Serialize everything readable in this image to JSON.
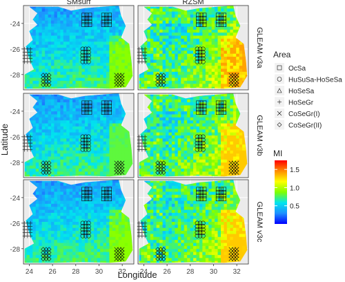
{
  "chart_data": {
    "type": "heatmap",
    "title": "",
    "xlabel": "Longitude",
    "ylabel": "Latitude",
    "columns": [
      "SMsurf",
      "RZSM"
    ],
    "rows": [
      "GLEAM v3a",
      "GLEAM v3b",
      "GLEAM v3c"
    ],
    "xlim": [
      23.5,
      33
    ],
    "ylim": [
      -29.2,
      -22.6
    ],
    "x_ticks": [
      24,
      26,
      28,
      30,
      32
    ],
    "x_tick_labels": [
      "24",
      "26",
      "28",
      "30",
      "32"
    ],
    "y_ticks": [
      -24,
      -26,
      -28
    ],
    "y_tick_labels": [
      "-24",
      "-26",
      "-28"
    ],
    "areas_legend": {
      "title": "Area",
      "items": [
        {
          "label": "OcSa",
          "symbol": "square"
        },
        {
          "label": "HuSuSa-HoSeSa",
          "symbol": "circle"
        },
        {
          "label": "HoSeSa",
          "symbol": "triangle"
        },
        {
          "label": "HoSeGr",
          "symbol": "plus"
        },
        {
          "label": "CoSeGr(I)",
          "symbol": "cross"
        },
        {
          "label": "CoSeGr(II)",
          "symbol": "diamond"
        }
      ]
    },
    "colorbar": {
      "title": "MI",
      "range": [
        0,
        1.75
      ],
      "ticks": [
        0.5,
        1.0,
        1.5
      ],
      "tick_labels": [
        "0.5",
        "1.0",
        "1.5"
      ],
      "colors": [
        "#0000ff",
        "#1e90ff",
        "#00e5ee",
        "#7fff00",
        "#ffff00",
        "#ff8c00",
        "#ff0000"
      ]
    },
    "area_markers": [
      {
        "area": "OcSa",
        "symbol": "square",
        "lon": [
          28.7,
          29.3
        ],
        "lat": [
          -24.1,
          -23.3
        ]
      },
      {
        "area": "OcSa",
        "symbol": "square",
        "lon": [
          30.4,
          31.0
        ],
        "lat": [
          -24.1,
          -23.3
        ]
      },
      {
        "area": "HuSuSa-HoSeSa",
        "symbol": "circle",
        "lon": [
          28.6,
          29.3
        ],
        "lat": [
          -27.0,
          -26.0
        ]
      },
      {
        "area": "HoSeGr",
        "symbol": "plus",
        "lon": [
          23.6,
          24.3
        ],
        "lat": [
          -27.0,
          -26.0
        ]
      },
      {
        "area": "CoSeGr(I)",
        "symbol": "cross",
        "lon": [
          31.5,
          32.2
        ],
        "lat": [
          -28.8,
          -28.0
        ]
      },
      {
        "area": "CoSeGr(II)",
        "symbol": "diamond",
        "lon": [
          25.2,
          25.8
        ],
        "lat": [
          -28.8,
          -28.0
        ]
      }
    ],
    "series": [
      {
        "panel": "SMsurf / GLEAM v3a",
        "typical_mi": 0.5,
        "range": [
          0.2,
          0.9
        ]
      },
      {
        "panel": "RZSM / GLEAM v3a",
        "typical_mi": 0.8,
        "range": [
          0.3,
          1.4
        ]
      },
      {
        "panel": "SMsurf / GLEAM v3b",
        "typical_mi": 0.5,
        "range": [
          0.2,
          0.8
        ]
      },
      {
        "panel": "RZSM / GLEAM v3b",
        "typical_mi": 0.7,
        "range": [
          0.3,
          1.3
        ]
      },
      {
        "panel": "SMsurf / GLEAM v3c",
        "typical_mi": 0.5,
        "range": [
          0.2,
          0.9
        ]
      },
      {
        "panel": "RZSM / GLEAM v3c",
        "typical_mi": 0.7,
        "range": [
          0.3,
          1.3
        ]
      }
    ],
    "grid": true
  }
}
